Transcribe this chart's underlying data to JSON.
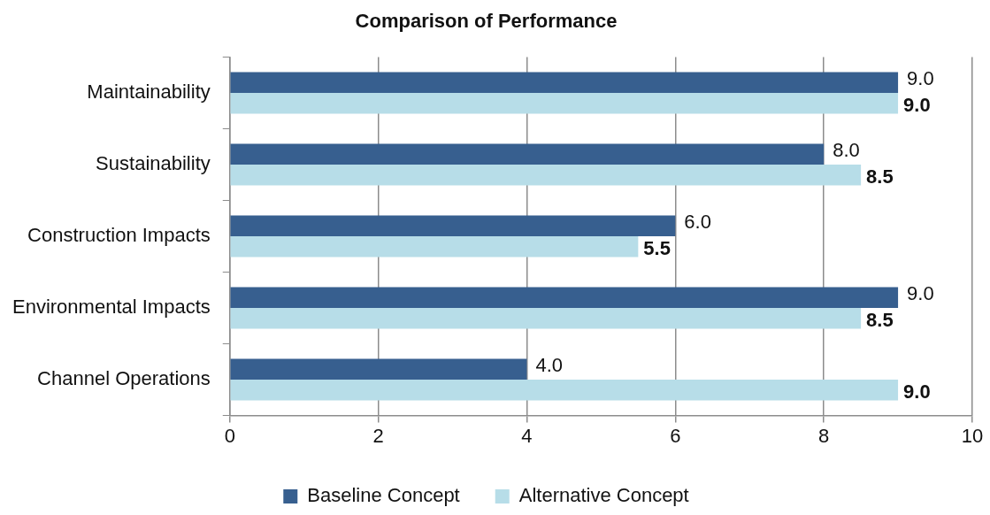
{
  "chart_data": {
    "type": "bar",
    "title": "Comparison of Performance",
    "orientation": "horizontal",
    "categories": [
      "Maintainability",
      "Sustainability",
      "Construction Impacts",
      "Environmental Impacts",
      "Channel Operations"
    ],
    "series": [
      {
        "name": "Baseline Concept",
        "color": "#375f8f",
        "values": [
          9.0,
          8.0,
          6.0,
          9.0,
          4.0
        ],
        "value_labels": [
          "9.0",
          "8.0",
          "6.0",
          "9.0",
          "4.0"
        ]
      },
      {
        "name": "Alternative Concept",
        "color": "#b7dde8",
        "values": [
          9.0,
          8.5,
          5.5,
          8.5,
          9.0
        ],
        "value_labels": [
          "9.0",
          "8.5",
          "5.5",
          "8.5",
          "9.0"
        ]
      }
    ],
    "xlim": [
      0,
      10
    ],
    "xticks": [
      0,
      2,
      4,
      6,
      8,
      10
    ],
    "grid": "x",
    "legend": "bottom"
  }
}
